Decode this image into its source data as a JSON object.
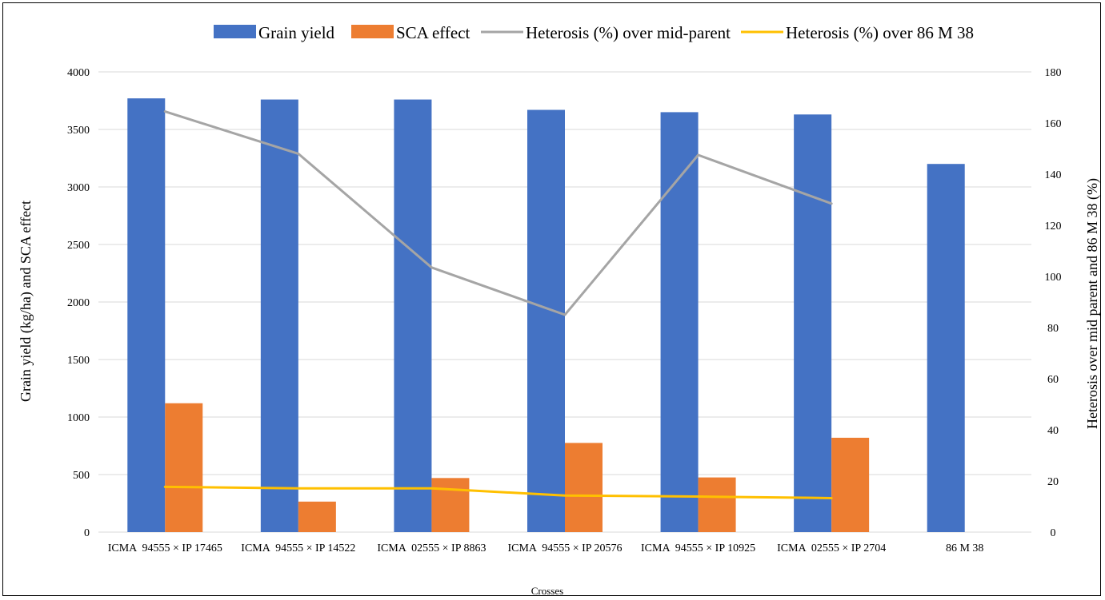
{
  "chart_data": {
    "type": "bar",
    "categories": [
      "ICMA  94555 × IP 17465",
      "ICMA  94555 × IP 14522",
      "ICMA  02555 × IP 8863",
      "ICMA  94555 × IP 20576",
      "ICMA  94555 × IP 10925",
      "ICMA  02555 × IP 2704",
      "86 M 38"
    ],
    "series": [
      {
        "name": "Grain yield",
        "type": "bar",
        "axis": "left",
        "color": "#4472c4",
        "values": [
          3770,
          3760,
          3760,
          3670,
          3650,
          3630,
          3200
        ]
      },
      {
        "name": "SCA effect",
        "type": "bar",
        "axis": "left",
        "color": "#ed7d31",
        "values": [
          1120,
          265,
          470,
          775,
          475,
          820,
          null
        ]
      },
      {
        "name": "Heterosis (%) over mid-parent",
        "type": "line",
        "axis": "right",
        "color": "#a5a5a5",
        "values": [
          164.5,
          148,
          103.5,
          85,
          147.5,
          128.5,
          null
        ]
      },
      {
        "name": "Heterosis (%) over 86 M 38",
        "type": "line",
        "axis": "right",
        "color": "#ffc000",
        "values": [
          17.7,
          17.1,
          17.1,
          14.3,
          13.9,
          13.3,
          null
        ]
      }
    ],
    "xlabel": "Crosses",
    "ylabel": "Grain yield (kg/ha) and SCA effect",
    "y2label": "Heterosis over mid parent and 86 M 38  (%)",
    "ylim": [
      0,
      4000
    ],
    "y2lim": [
      0,
      180
    ],
    "yticks": [
      "0",
      "500",
      "1000",
      "1500",
      "2000",
      "2500",
      "3000",
      "3500",
      "4000"
    ],
    "y2ticks": [
      "0",
      "20",
      "40",
      "60",
      "80",
      "100",
      "120",
      "140",
      "160",
      "180"
    ],
    "grid": true,
    "legend_position": "top"
  }
}
